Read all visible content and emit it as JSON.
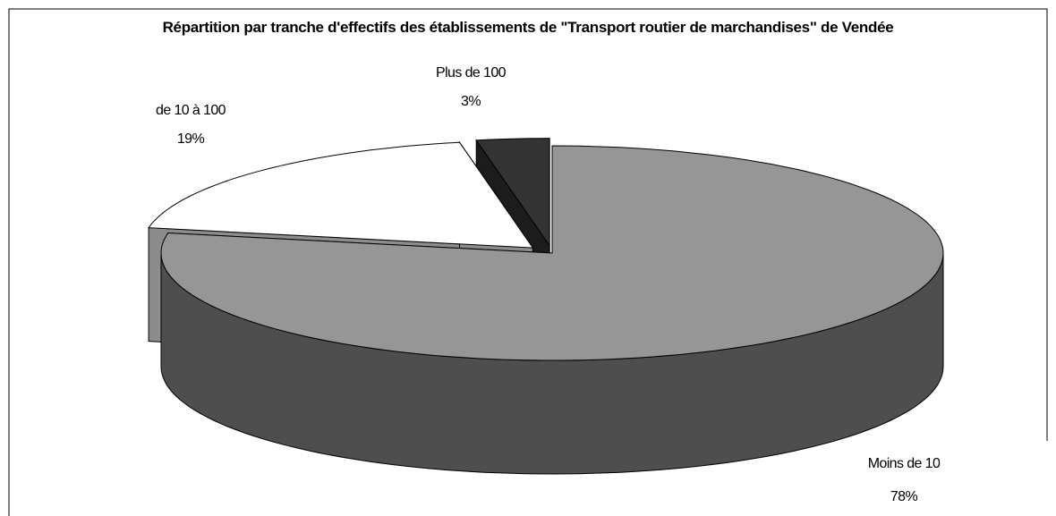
{
  "chart_data": {
    "type": "pie",
    "title": "Répartition par tranche d'effectifs des établissements de \"Transport routier de marchandises\" de Vendée",
    "categories": [
      "Moins de 10",
      "de 10 à 100",
      "Plus de 100"
    ],
    "values": [
      78,
      19,
      3
    ],
    "value_labels": [
      "78%",
      "19%",
      "3%"
    ],
    "colors": [
      "#969696",
      "#ffffff",
      "#333333"
    ]
  }
}
